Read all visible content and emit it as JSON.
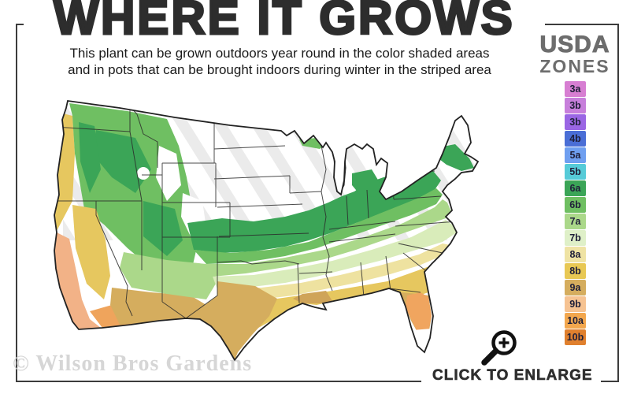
{
  "header": {
    "title": "WHERE IT GROWS",
    "subtitle_line1": "This plant can be grown outdoors year round in the color shaded areas",
    "subtitle_line2": "and in pots that can be brought indoors during winter in the striped area"
  },
  "legend": {
    "heading_line1": "USDA",
    "heading_line2": "ZONES",
    "zones": [
      {
        "label": "3a",
        "color": "#d77ed2"
      },
      {
        "label": "3b",
        "color": "#c77fdb"
      },
      {
        "label": "3b",
        "color": "#9a66e4"
      },
      {
        "label": "4b",
        "color": "#4a6ed6"
      },
      {
        "label": "5a",
        "color": "#6f9ff0"
      },
      {
        "label": "5b",
        "color": "#56cbd8"
      },
      {
        "label": "6a",
        "color": "#3ba557"
      },
      {
        "label": "6b",
        "color": "#6fbf62"
      },
      {
        "label": "7a",
        "color": "#abd88a"
      },
      {
        "label": "7b",
        "color": "#dff0c8"
      },
      {
        "label": "8a",
        "color": "#efe3a4"
      },
      {
        "label": "8b",
        "color": "#e8c854"
      },
      {
        "label": "9a",
        "color": "#d5ad5e"
      },
      {
        "label": "9b",
        "color": "#f6c392"
      },
      {
        "label": "10a",
        "color": "#f3a74e"
      },
      {
        "label": "10b",
        "color": "#e0802e"
      }
    ]
  },
  "map": {
    "name": "us-usda-zones-map",
    "palette": {
      "white": "#ffffff",
      "stripe": "#ebebeb",
      "z6a": "#3ba557",
      "z6b": "#6fbf62",
      "z7a": "#abd88a",
      "z7b": "#d9ecba",
      "z8a": "#eee2a0",
      "z8b": "#e6c75f",
      "z9a": "#d5ad5e",
      "z9b": "#f2b287",
      "z10a": "#efa45c",
      "la_tan": "#cfa459",
      "fl_orange": "#f0a55f",
      "tx_tip": "#eda26b"
    }
  },
  "footer": {
    "watermark": "© Wilson Bros Gardens",
    "enlarge_label": "CLICK TO ENLARGE"
  }
}
